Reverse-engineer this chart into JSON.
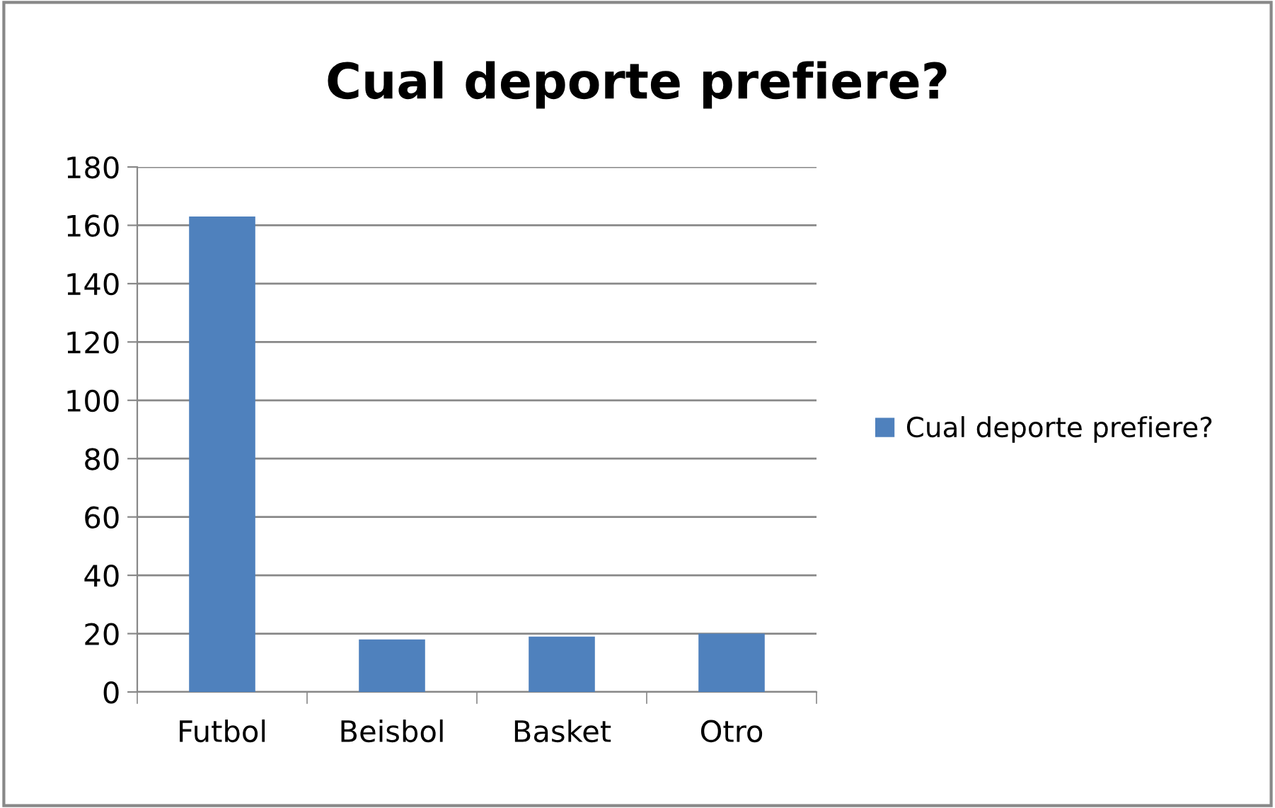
{
  "chart_data": {
    "type": "bar",
    "title": "Cual deporte prefiere?",
    "categories": [
      "Futbol",
      "Beisbol",
      "Basket",
      "Otro"
    ],
    "series": [
      {
        "name": "Cual deporte prefiere?",
        "color": "#4f81bd",
        "values": [
          163,
          18,
          19,
          20
        ]
      }
    ],
    "ylim": [
      0,
      180
    ],
    "yticks": [
      0,
      20,
      40,
      60,
      80,
      100,
      120,
      140,
      160,
      180
    ],
    "grid": "y",
    "legend": "right"
  }
}
